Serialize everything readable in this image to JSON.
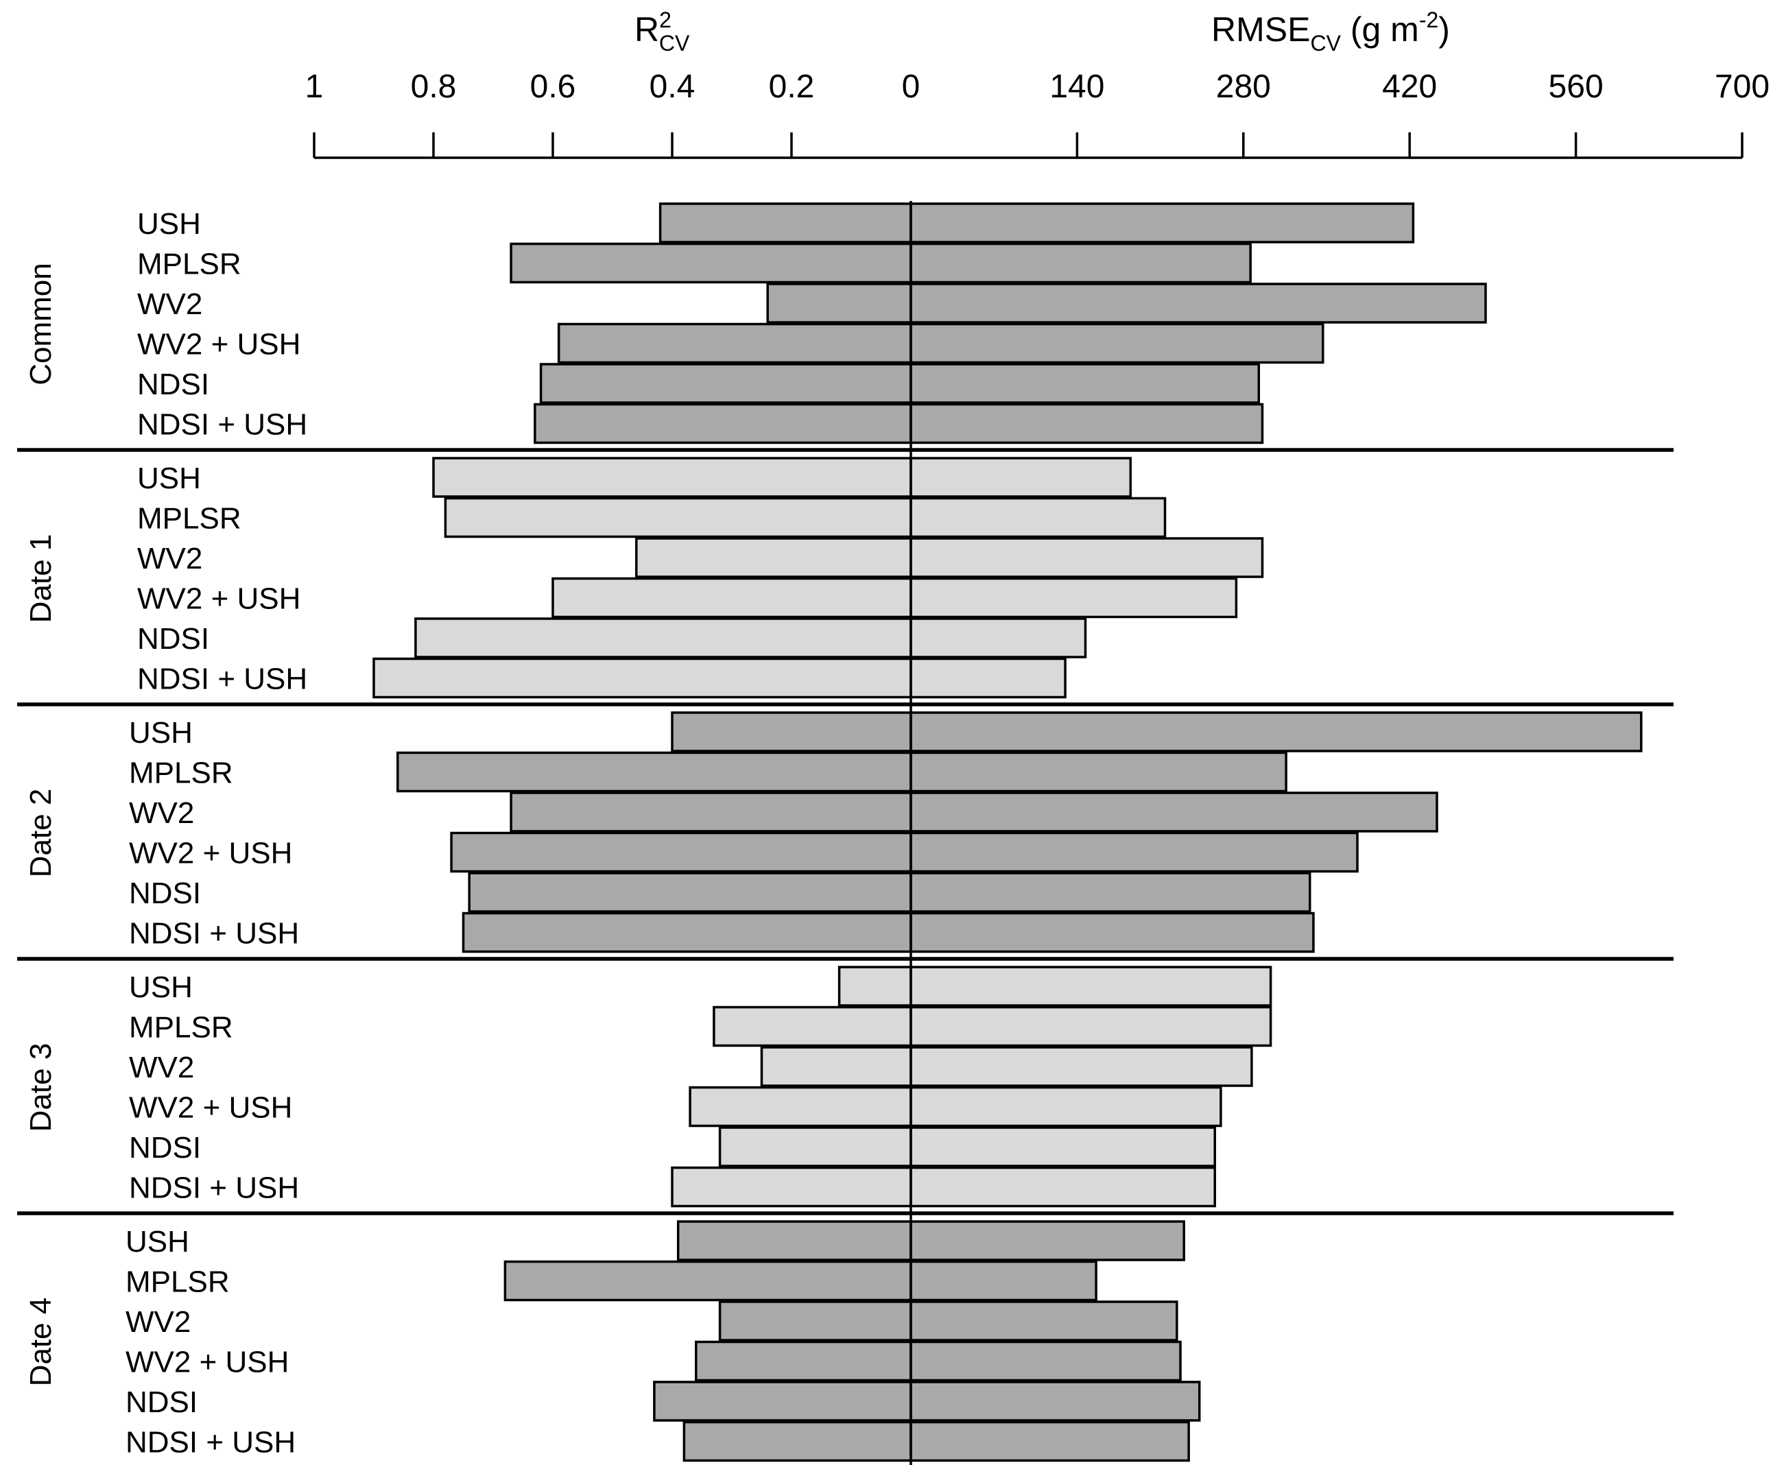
{
  "chart_data": {
    "type": "bar",
    "orientation": "horizontal-butterfly",
    "left_axis": {
      "title_main": "R",
      "title_sup": "2",
      "title_sub": "CV",
      "ticks": [
        1,
        0.8,
        0.6,
        0.4,
        0.2,
        0
      ],
      "tick_labels": [
        "1",
        "0.8",
        "0.6",
        "0.4",
        "0.2",
        "0"
      ],
      "range": [
        1,
        0
      ],
      "direction": "reversed"
    },
    "right_axis": {
      "title_main": "RMSE",
      "title_sub": "CV",
      "title_unit_pre": " (g m",
      "title_unit_sup": "-2",
      "title_unit_post": ")",
      "ticks": [
        0,
        140,
        280,
        420,
        560,
        700
      ],
      "tick_labels": [
        "0",
        "140",
        "280",
        "420",
        "560",
        "700"
      ],
      "range": [
        0,
        700
      ]
    },
    "colors": {
      "dark": "#a9a9a9",
      "light": "#d9d9d9",
      "stroke": "#000000"
    },
    "groups": [
      {
        "name": "Common",
        "shade": "dark",
        "items": [
          {
            "label": "USH",
            "r2": 0.42,
            "rmse": 423
          },
          {
            "label": "MPLSR",
            "r2": 0.67,
            "rmse": 286
          },
          {
            "label": "WV2",
            "r2": 0.24,
            "rmse": 484
          },
          {
            "label": "WV2 + USH",
            "r2": 0.59,
            "rmse": 347
          },
          {
            "label": "NDSI",
            "r2": 0.62,
            "rmse": 293
          },
          {
            "label": "NDSI + USH",
            "r2": 0.63,
            "rmse": 296
          }
        ]
      },
      {
        "name": "Date 1",
        "shade": "light",
        "items": [
          {
            "label": "USH",
            "r2": 0.8,
            "rmse": 185
          },
          {
            "label": "MPLSR",
            "r2": 0.78,
            "rmse": 214
          },
          {
            "label": "WV2",
            "r2": 0.46,
            "rmse": 296
          },
          {
            "label": "WV2 + USH",
            "r2": 0.6,
            "rmse": 274
          },
          {
            "label": "NDSI",
            "r2": 0.83,
            "rmse": 147
          },
          {
            "label": "NDSI + USH",
            "r2": 0.9,
            "rmse": 130
          }
        ]
      },
      {
        "name": "Date 2",
        "shade": "dark",
        "items": [
          {
            "label": "USH",
            "r2": 0.4,
            "rmse": 615
          },
          {
            "label": "MPLSR",
            "r2": 0.86,
            "rmse": 316
          },
          {
            "label": "WV2",
            "r2": 0.67,
            "rmse": 443
          },
          {
            "label": "WV2 + USH",
            "r2": 0.77,
            "rmse": 376
          },
          {
            "label": "NDSI",
            "r2": 0.74,
            "rmse": 336
          },
          {
            "label": "NDSI + USH",
            "r2": 0.75,
            "rmse": 339
          }
        ]
      },
      {
        "name": "Date 3",
        "shade": "light",
        "items": [
          {
            "label": "USH",
            "r2": 0.12,
            "rmse": 303
          },
          {
            "label": "MPLSR",
            "r2": 0.33,
            "rmse": 303
          },
          {
            "label": "WV2",
            "r2": 0.25,
            "rmse": 287
          },
          {
            "label": "WV2 + USH",
            "r2": 0.37,
            "rmse": 261
          },
          {
            "label": "NDSI",
            "r2": 0.32,
            "rmse": 256
          },
          {
            "label": "NDSI + USH",
            "r2": 0.4,
            "rmse": 256
          }
        ]
      },
      {
        "name": "Date 4",
        "shade": "dark",
        "items": [
          {
            "label": "USH",
            "r2": 0.39,
            "rmse": 230
          },
          {
            "label": "MPLSR",
            "r2": 0.68,
            "rmse": 156
          },
          {
            "label": "WV2",
            "r2": 0.32,
            "rmse": 224
          },
          {
            "label": "WV2 + USH",
            "r2": 0.36,
            "rmse": 227
          },
          {
            "label": "NDSI",
            "r2": 0.43,
            "rmse": 243
          },
          {
            "label": "NDSI + USH",
            "r2": 0.38,
            "rmse": 234
          }
        ]
      }
    ]
  }
}
